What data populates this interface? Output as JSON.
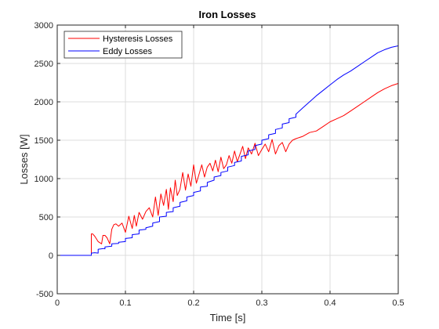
{
  "chart_data": {
    "type": "line",
    "title": "Iron Losses",
    "xlabel": "Time [s]",
    "ylabel": "Losses [W]",
    "xlim": [
      0,
      0.5
    ],
    "ylim": [
      -500,
      3000
    ],
    "xticks": [
      0,
      0.1,
      0.2,
      0.3,
      0.4,
      0.5
    ],
    "xtick_labels": [
      "0",
      "0.1",
      "0.2",
      "0.3",
      "0.4",
      "0.5"
    ],
    "yticks": [
      -500,
      0,
      500,
      1000,
      1500,
      2000,
      2500,
      3000
    ],
    "ytick_labels": [
      "-500",
      "0",
      "500",
      "1000",
      "1500",
      "2000",
      "2500",
      "3000"
    ],
    "grid": true,
    "legend_position": "top-left",
    "series": [
      {
        "name": "Hysteresis Losses",
        "color": "#ff0000",
        "x": [
          0,
          0.05,
          0.05,
          0.052,
          0.055,
          0.06,
          0.065,
          0.067,
          0.07,
          0.073,
          0.077,
          0.08,
          0.083,
          0.086,
          0.09,
          0.095,
          0.1,
          0.105,
          0.11,
          0.113,
          0.116,
          0.12,
          0.125,
          0.13,
          0.135,
          0.14,
          0.144,
          0.148,
          0.152,
          0.156,
          0.16,
          0.163,
          0.166,
          0.17,
          0.173,
          0.176,
          0.18,
          0.184,
          0.188,
          0.192,
          0.196,
          0.2,
          0.204,
          0.208,
          0.212,
          0.216,
          0.22,
          0.224,
          0.228,
          0.232,
          0.236,
          0.24,
          0.244,
          0.248,
          0.252,
          0.256,
          0.26,
          0.264,
          0.268,
          0.272,
          0.276,
          0.28,
          0.285,
          0.29,
          0.295,
          0.3,
          0.305,
          0.31,
          0.315,
          0.32,
          0.325,
          0.33,
          0.335,
          0.34,
          0.345,
          0.35,
          0.36,
          0.37,
          0.38,
          0.39,
          0.4,
          0.41,
          0.42,
          0.43,
          0.44,
          0.45,
          0.46,
          0.47,
          0.48,
          0.49,
          0.5
        ],
        "y": [
          0,
          0,
          280,
          280,
          250,
          180,
          150,
          260,
          260,
          230,
          150,
          340,
          400,
          410,
          380,
          420,
          300,
          510,
          350,
          520,
          380,
          560,
          470,
          570,
          620,
          500,
          760,
          520,
          800,
          650,
          860,
          600,
          880,
          700,
          980,
          780,
          860,
          1080,
          850,
          1060,
          900,
          1180,
          940,
          1060,
          1180,
          1020,
          1150,
          1200,
          1100,
          1240,
          1090,
          1280,
          1130,
          1180,
          1300,
          1200,
          1360,
          1220,
          1320,
          1420,
          1260,
          1400,
          1320,
          1460,
          1300,
          1380,
          1450,
          1350,
          1510,
          1320,
          1430,
          1470,
          1350,
          1450,
          1500,
          1520,
          1550,
          1600,
          1620,
          1680,
          1740,
          1780,
          1820,
          1880,
          1940,
          2000,
          2060,
          2120,
          2170,
          2210,
          2240
        ]
      },
      {
        "name": "Eddy Losses",
        "color": "#0000ff",
        "x": [
          0,
          0.05,
          0.05,
          0.055,
          0.06,
          0.06,
          0.068,
          0.07,
          0.07,
          0.08,
          0.08,
          0.09,
          0.09,
          0.1,
          0.1,
          0.11,
          0.11,
          0.12,
          0.12,
          0.13,
          0.13,
          0.14,
          0.14,
          0.15,
          0.15,
          0.16,
          0.16,
          0.17,
          0.17,
          0.18,
          0.18,
          0.19,
          0.19,
          0.2,
          0.2,
          0.21,
          0.21,
          0.22,
          0.22,
          0.23,
          0.23,
          0.24,
          0.24,
          0.25,
          0.25,
          0.26,
          0.26,
          0.27,
          0.27,
          0.28,
          0.28,
          0.29,
          0.29,
          0.3,
          0.3,
          0.31,
          0.31,
          0.32,
          0.32,
          0.33,
          0.33,
          0.34,
          0.34,
          0.35,
          0.35,
          0.36,
          0.37,
          0.38,
          0.39,
          0.4,
          0.41,
          0.42,
          0.43,
          0.44,
          0.45,
          0.46,
          0.47,
          0.48,
          0.49,
          0.5
        ],
        "y": [
          0,
          0,
          30,
          35,
          30,
          80,
          90,
          85,
          110,
          120,
          150,
          155,
          170,
          180,
          220,
          230,
          270,
          280,
          330,
          340,
          360,
          380,
          420,
          440,
          500,
          510,
          560,
          570,
          620,
          640,
          690,
          710,
          760,
          780,
          820,
          840,
          890,
          900,
          950,
          980,
          1020,
          1040,
          1080,
          1100,
          1150,
          1170,
          1210,
          1230,
          1290,
          1310,
          1360,
          1380,
          1430,
          1450,
          1500,
          1520,
          1570,
          1590,
          1640,
          1660,
          1710,
          1730,
          1780,
          1800,
          1840,
          1920,
          2000,
          2080,
          2150,
          2220,
          2290,
          2350,
          2400,
          2460,
          2520,
          2580,
          2640,
          2680,
          2710,
          2730
        ]
      }
    ]
  }
}
